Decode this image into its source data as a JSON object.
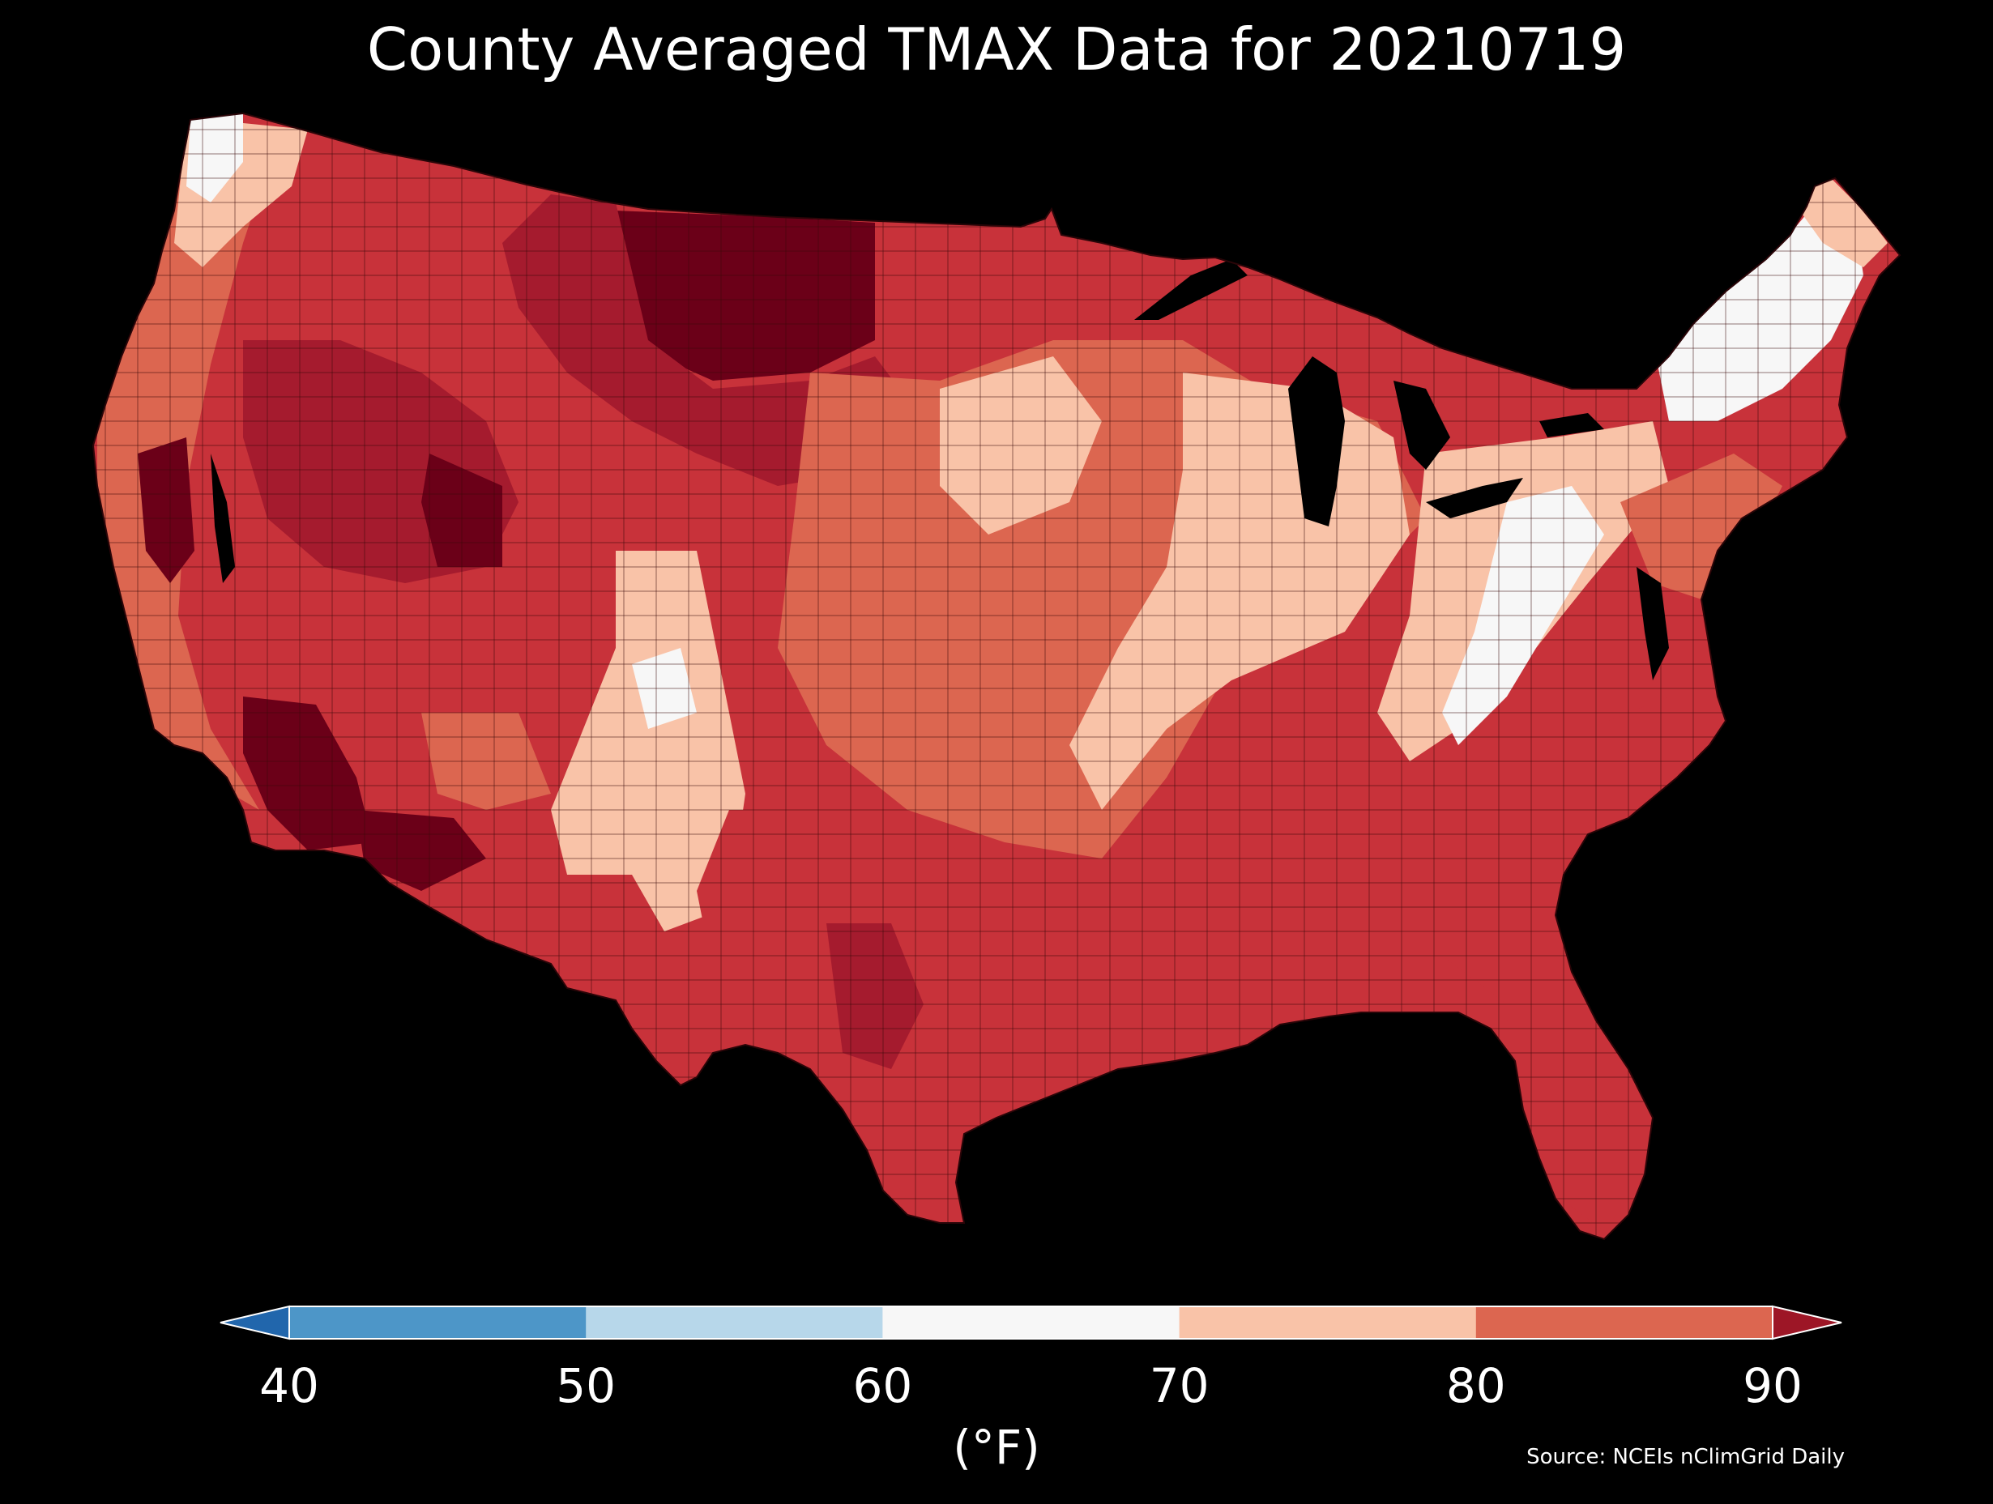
{
  "title": "County Averaged TMAX Data for 20210719",
  "colorbar": {
    "ticks": [
      "40",
      "50",
      "60",
      "70",
      "80",
      "90"
    ],
    "unit": "(°F)",
    "bins": [
      {
        "range": "<40",
        "color": "#2166ac"
      },
      {
        "range": "40-50",
        "color": "#4d96c8"
      },
      {
        "range": "50-60",
        "color": "#b7d7ea"
      },
      {
        "range": "60-70",
        "color": "#f7f7f7"
      },
      {
        "range": "70-80",
        "color": "#f9c3a8"
      },
      {
        "range": "80-90",
        "color": "#dc6650"
      },
      {
        "range": ">90",
        "color": "#9d1626"
      }
    ],
    "extend": "both"
  },
  "source": "Source: NCEIs nClimGrid Daily",
  "map": {
    "region": "Contiguous United States counties",
    "variable": "TMAX",
    "date": "20210719",
    "colors": {
      "coolest": "#f7f7f7",
      "cool": "#f9c3a8",
      "warm": "#e2705a",
      "hot": "#c8323a",
      "hotter": "#a51b2e",
      "hottest": "#6b0018",
      "county_border": "#3a0a0a",
      "water": "#000000"
    }
  }
}
